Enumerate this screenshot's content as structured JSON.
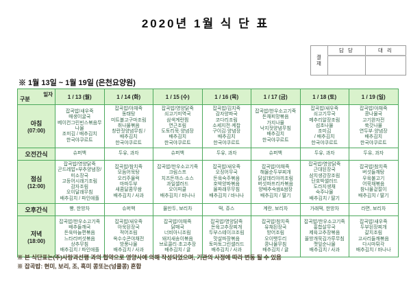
{
  "page": {
    "title": "2020년 1월 식 단 표",
    "subtitle": "※ 1월 13일 ~ 1월 19일 (은천요양원)"
  },
  "approval": {
    "stamp": "결\n재",
    "headers": [
      "담 당",
      "대 리"
    ]
  },
  "menu_table": {
    "corner": {
      "top": "일자",
      "bottom": "구분"
    },
    "date_headers": [
      "1 / 13 (월)",
      "1 / 14 (화)",
      "1 / 15 (수)",
      "1 / 16 (목)",
      "1 / 17 (금)",
      "1 / 18 (토)",
      "1 / 19 (일)"
    ],
    "rows": [
      {
        "label": "아침",
        "time": "(07:00)",
        "cells": [
          [
            "잡곡밥/새우죽",
            "매생이굴국",
            "베이컨그린빈스볶음무",
            "나물",
            "조미김 / 배추김치",
            "한국야쿠르트"
          ],
          [
            "잡곡밥/야채죽",
            "동태탕",
            "미트볼고구마조림",
            "취나물볶음",
            "창란젓양념무침 /",
            "배추김치",
            "한국야쿠르트"
          ],
          [
            "잡곡밥/영양닭죽",
            "쇠고기미역국",
            "삼색계란찜",
            "연근조림",
            "도토리묵·양념장",
            "배추김치",
            "한국야쿠르트"
          ],
          [
            "잡곡밥/김치죽",
            "감자양파국",
            "코다리조림",
            "소세지전·케찹",
            "구이김·양념장",
            "배추김치",
            "한국야쿠르트"
          ],
          [
            "잡곡밥/한우소고기죽",
            "돈채피망볶음",
            "가지나물",
            "낙지젓양념무침",
            "배추김치",
            "한국야쿠르트"
          ],
          [
            "잡곡밥/새우죽",
            "쇠고기무국",
            "메추리알장조림",
            "섬초나물",
            "조미김",
            "/ 배추김치",
            "한국야쿠르트"
          ],
          [
            "잡곡밥/야채죽",
            "콩나물국",
            "고기완자전",
            "쑥갓나물",
            "연두부·양념장",
            "배추김치",
            "한국야쿠르트"
          ]
        ]
      },
      {
        "label": "오전간식",
        "time": "",
        "cells": [
          [
            "슈퍼백"
          ],
          [
            "두유, 과자"
          ],
          [
            "슈퍼백"
          ],
          [
            "두유, 과자"
          ],
          [
            "슈퍼백"
          ],
          [
            "두유, 과자"
          ],
          [
            "두유, 과자"
          ]
        ]
      },
      {
        "label": "점심",
        "time": "(12:00)",
        "cells": [
          [
            "잡곡밥/영양닭죽",
            "곤드레밥+부추양념장/",
            "미소장국",
            "고등어시래기조림",
            "감자조림",
            "오이달래무침",
            "배추김치 / 파인애플"
          ],
          [
            "잡곡밥/참치죽",
            "모듬어묵탕",
            "오리주물럭",
            "마파두부",
            "새콤달콤무쌈",
            "배추김치 / 사과"
          ],
          [
            "잡곡밥/한우소고기죽",
            "크림스프",
            "치즈돈까스·소스",
            "과일샐러드",
            "오이피클",
            "배추김치 / 바나나"
          ],
          [
            "잡곡밥/새우죽",
            "오징어무국",
            "돈육숙주볶음",
            "호박양파볶음",
            "물파래무무침",
            "배추김치 / 바나나"
          ],
          [
            "잡곡밥/야채죽",
            "해물순두부찌개",
            "닭살데리야끼조림",
            "버섯파프리카볶음",
            "양배추숙쌈&쌈장",
            "배추김치 / 딸기"
          ],
          [
            "잡곡밥/영양닭죽",
            "근대된장국",
            "삼치생강장조림",
            "단호박샐러드",
            "도라지생채",
            "숙주나물",
            "배추김치 / 딸기"
          ],
          [
            "잡곡밥/참치죽",
            "버섯들깨탕",
            "우육불고기",
            "어묵채볶음",
            "참나물겉절이",
            "배추김치 / 딸기"
          ]
        ]
      },
      {
        "label": "오후간식",
        "time": "",
        "cells": [
          [
            "빵, 한방차"
          ],
          [
            "슈퍼백"
          ],
          [
            "물만두, 보리차"
          ],
          [
            "떡, 쥬스"
          ],
          [
            "계란, 보리차"
          ],
          [
            "가래떡, 한방차"
          ],
          [
            "라면, 보리차"
          ]
        ]
      },
      {
        "label": "저녁",
        "time": "(18:00)",
        "cells": [
          [
            "잡곡밥/한우소고기죽",
            "배추들깨국",
            "돈육마늘편볶음",
            "느타리버섯볶음",
            "상추무침",
            "배추김치 / 파인애플"
          ],
          [
            "잡곡밥/새우죽",
            "아욱된장국",
            "적어조림",
            "옥수수콘야채전",
            "방풍나물",
            "배추김치 / 사과"
          ],
          [
            "잡곡밥/야채죽",
            "닭매국",
            "너비아니조림",
            "돼지새송이볶음",
            "브로콜리·초고추장",
            "배추김치 / 귤"
          ],
          [
            "잡곡밥/영양닭죽",
            "돈육고추장찌개",
            "두부스테이크조림",
            "맛살파장볶음",
            "토마토그린샐러드",
            "배추김치 / 사과"
          ],
          [
            "잡곡밥/참치죽",
            "유채된장국",
            "방어조림",
            "오이뱃두리",
            "콩나물무침",
            "배추김치 / 귤"
          ],
          [
            "잡곡밥/한우소고기죽",
            "홍합살무국",
            "제육고추장볶음",
            "올방개묵김가루무침",
            "깻잎순나물",
            "배추김치 / 사과"
          ],
          [
            "잡곡밥/새우죽",
            "두부된장찌개",
            "갈치조림",
            "고사리들깨볶음",
            "다시마튀각",
            "배추김치 / 바나나"
          ]
        ]
      }
    ]
  },
  "footnotes": [
    "※ 본 식단표는(주)사랑과선행 과의 협약으로 영양사에 의해 작성되었으며, 기관의 사정에 따라 변동 될 수 있음",
    "※ 잡곡밥: 현미, 보리, 조, 흑미 콩또는(넝쿨콩) 혼합"
  ],
  "colors": {
    "table_border": "#4aa85a",
    "header_bg": "#d9f2cc",
    "menu_text": "#37684d",
    "footnote_text": "#4a3a28"
  }
}
